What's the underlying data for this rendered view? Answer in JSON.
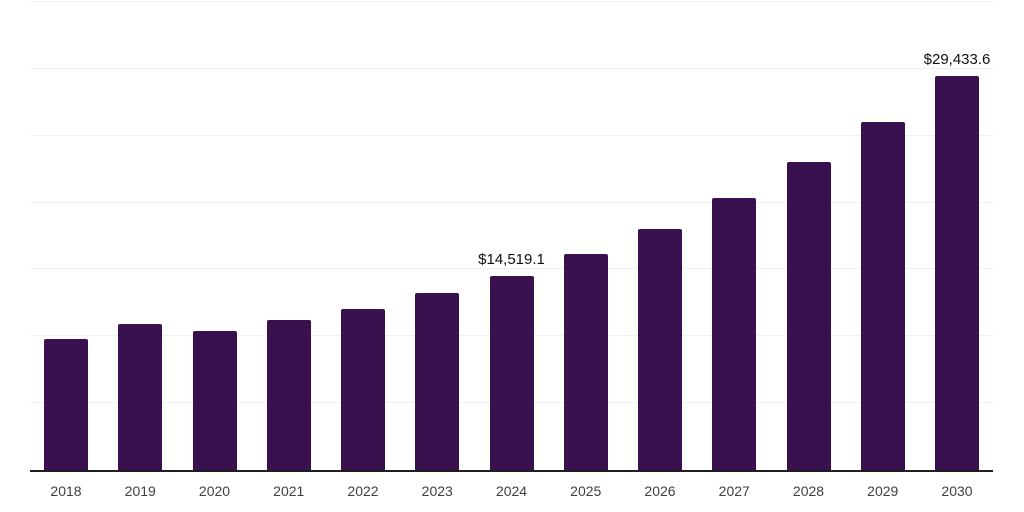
{
  "chart_data": {
    "type": "bar",
    "title": "",
    "xlabel": "",
    "ylabel": "",
    "categories": [
      "2018",
      "2019",
      "2020",
      "2021",
      "2022",
      "2023",
      "2024",
      "2025",
      "2026",
      "2027",
      "2028",
      "2029",
      "2030"
    ],
    "values": [
      9800,
      10940,
      10370,
      11240,
      12070,
      13270,
      14519.1,
      16190,
      18040,
      20340,
      23040,
      26030,
      29433.6
    ],
    "data_labels": {
      "2024": "$14,519.1",
      "2030": "$29,433.6"
    },
    "ylim": [
      0,
      35000
    ],
    "gridline_interval": 5000,
    "grid": true,
    "legend": false,
    "y_axis_tick_labels_visible": false,
    "colors": {
      "bar": "#39114E",
      "gridline": "#f0f0f0",
      "axis": "#1f1f1f",
      "x_label": "#3f3f3f",
      "data_label": "#111111",
      "background": "#ffffff"
    }
  }
}
